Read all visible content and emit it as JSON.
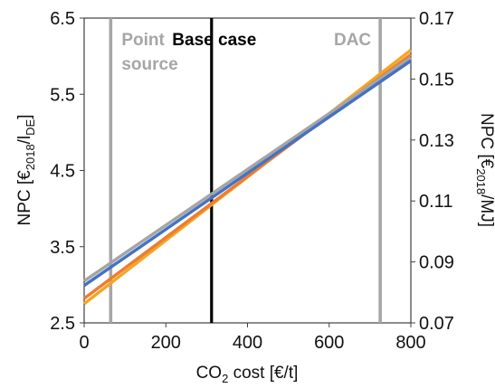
{
  "chart_data": {
    "type": "line",
    "title": "",
    "xlabel": {
      "base": "CO",
      "sub": "2",
      "rest": " cost [€/t]"
    },
    "ylabel_left": {
      "base": "NPC [€",
      "sub1": "2018",
      "mid": "/l",
      "sub2": "DE",
      "end": "]"
    },
    "ylabel_right": {
      "base": "NPC [€",
      "sub1": "2018",
      "end": "/MJ]"
    },
    "xlim": [
      0,
      800
    ],
    "ylim_left": [
      2.5,
      6.5
    ],
    "ylim_right": [
      0.07,
      0.17
    ],
    "x_ticks": [
      0,
      200,
      400,
      600,
      800
    ],
    "x_tick_labels": [
      "0",
      "200",
      "400",
      "600",
      "800"
    ],
    "y_left_ticks": [
      2.5,
      3.5,
      4.5,
      5.5,
      6.5
    ],
    "y_left_tick_labels": [
      "2.5",
      "3.5",
      "4.5",
      "5.5",
      "6.5"
    ],
    "y_right_ticks": [
      0.07,
      0.09,
      0.11,
      0.13,
      0.15,
      0.17
    ],
    "y_right_tick_labels": [
      "0.07",
      "0.09",
      "0.11",
      "0.13",
      "0.15",
      "0.17"
    ],
    "grid": false,
    "series": [
      {
        "color": "#F5A623",
        "x": [
          0,
          800
        ],
        "y": [
          2.75,
          6.08
        ]
      },
      {
        "color": "#ED7D31",
        "x": [
          0,
          800
        ],
        "y": [
          2.82,
          6.02
        ]
      },
      {
        "color": "#A5A5A5",
        "x": [
          0,
          800
        ],
        "y": [
          3.05,
          5.98
        ]
      },
      {
        "color": "#4472C4",
        "x": [
          0,
          800
        ],
        "y": [
          2.99,
          5.94
        ]
      }
    ],
    "vertical_lines": [
      {
        "x": 65,
        "color": "#A6A6A6",
        "label": [
          "Point",
          "source"
        ],
        "label_color": "#A6A6A6"
      },
      {
        "x": 312,
        "color": "#000000",
        "label": [
          "Base case"
        ],
        "label_color": "#000000"
      },
      {
        "x": 725,
        "color": "#A6A6A6",
        "label": [
          "DAC"
        ],
        "label_color": "#A6A6A6"
      }
    ]
  }
}
